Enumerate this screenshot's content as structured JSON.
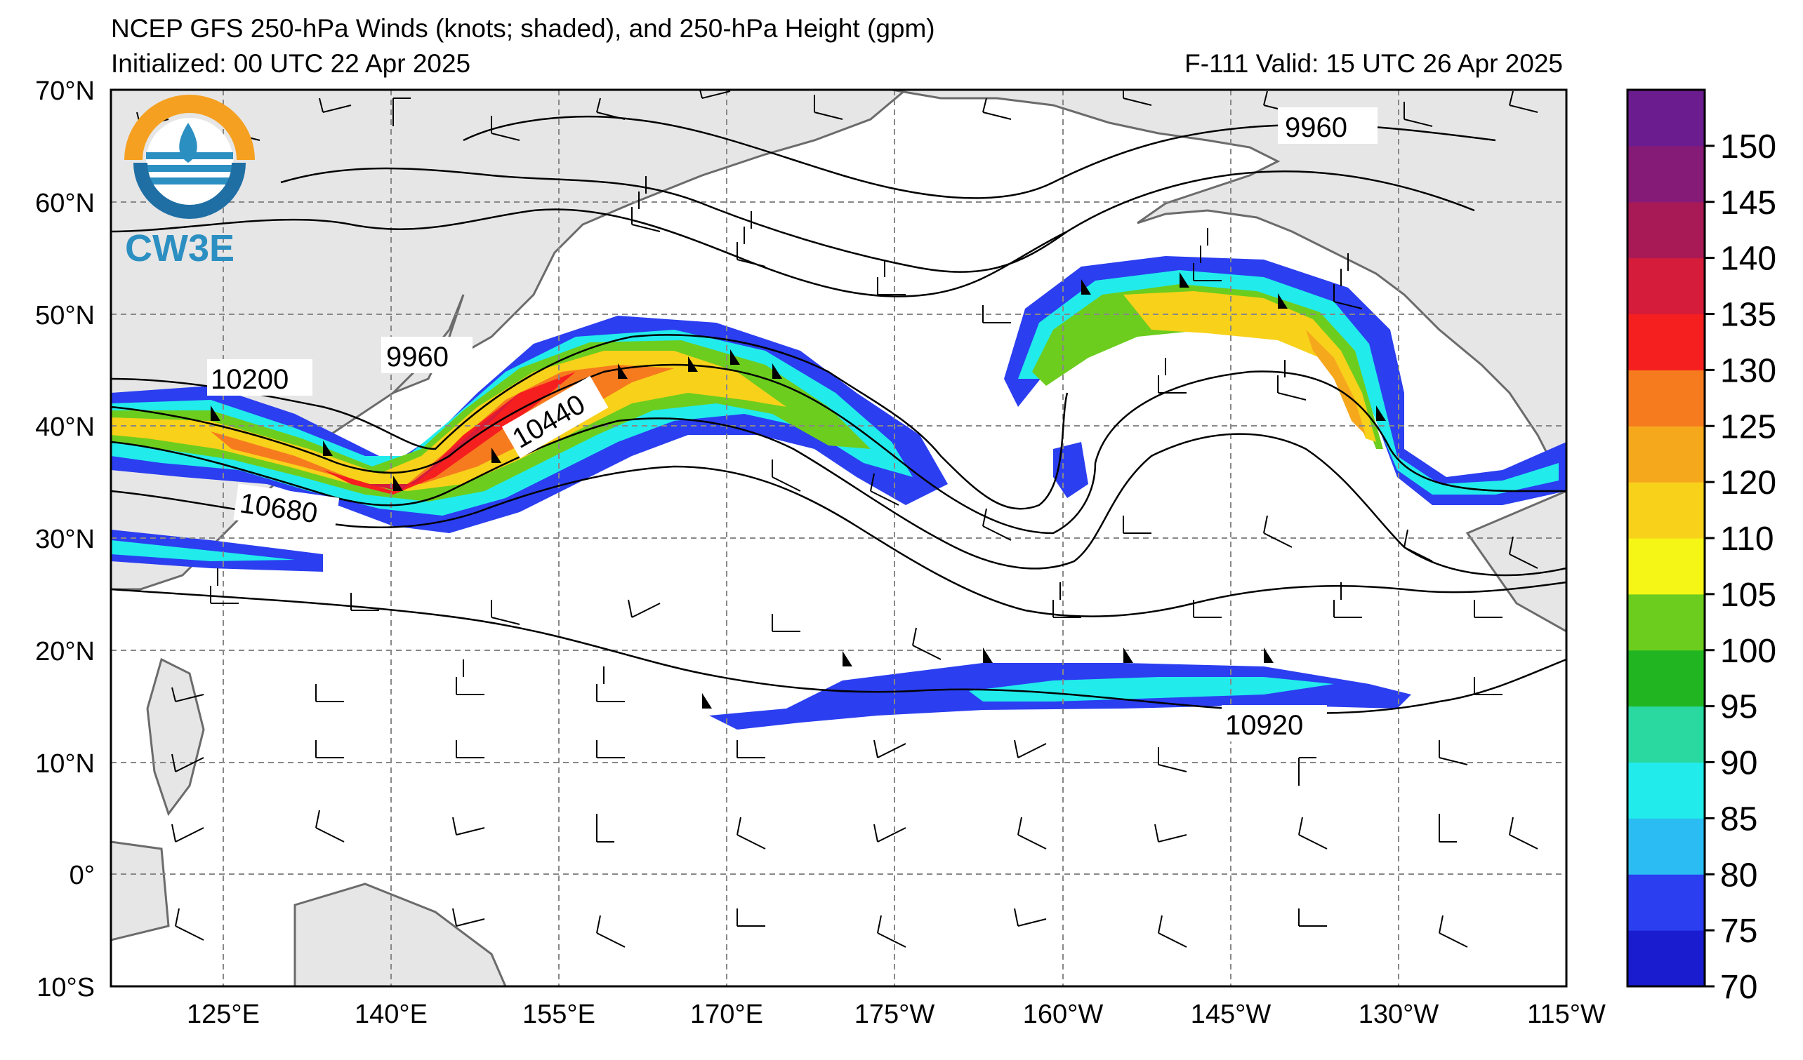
{
  "header": {
    "title": "NCEP GFS 250-hPa Winds (knots; shaded), and 250-hPa Height (gpm)",
    "initialized": "Initialized: 00 UTC 22 Apr 2025",
    "valid": "F-111  Valid: 15 UTC 26 Apr 2025"
  },
  "logo": {
    "text": "CW3E",
    "icon": "cw3e-logo-icon"
  },
  "axes": {
    "lat_labels": [
      "70°N",
      "60°N",
      "50°N",
      "40°N",
      "30°N",
      "20°N",
      "10°N",
      "0°",
      "10°S"
    ],
    "lon_labels": [
      "125°E",
      "140°E",
      "155°E",
      "170°E",
      "175°W",
      "160°W",
      "145°W",
      "130°W",
      "115°W"
    ]
  },
  "contour_labels": [
    "9960",
    "9960",
    "10200",
    "10440",
    "10680",
    "10920"
  ],
  "colorbar": {
    "labels": [
      "70",
      "75",
      "80",
      "85",
      "90",
      "95",
      "100",
      "105",
      "110",
      "120",
      "125",
      "130",
      "135",
      "140",
      "145",
      "150"
    ],
    "colors": [
      "#1a1ccf",
      "#2b3ef0",
      "#2abcf2",
      "#22ebec",
      "#29d9a0",
      "#21b521",
      "#6ccd1e",
      "#f5f516",
      "#f8d11a",
      "#f6a81d",
      "#f67b1f",
      "#f61f1f",
      "#d51c3a",
      "#a81a55",
      "#861a77",
      "#6b1d8f"
    ]
  }
}
